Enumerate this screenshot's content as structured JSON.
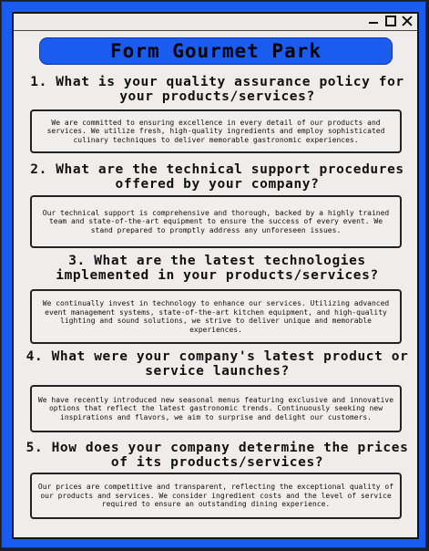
{
  "window": {
    "controls": {
      "minimize_icon": "minimize-icon",
      "maximize_icon": "maximize-icon",
      "close_icon": "close-icon"
    }
  },
  "header": {
    "title": "Form Gourmet Park",
    "accent_color": "#1a5cf0"
  },
  "items": [
    {
      "question": "1. What is your quality assurance policy for your products/services?",
      "answer": "We are committed to ensuring excellence in every detail of our products and services. We utilize fresh, high-quality ingredients and employ sophisticated culinary techniques to deliver memorable gastronomic experiences."
    },
    {
      "question": "2. What are the technical support procedures offered by your company?",
      "answer": "Our technical support is comprehensive and thorough, backed by a highly trained team and state-of-the-art equipment to ensure the success of every event. We stand prepared to promptly address any unforeseen issues."
    },
    {
      "question": "3. What are the latest technologies implemented in your products/services?",
      "answer": "We continually invest in technology to enhance our services. Utilizing advanced event management systems, state-of-the-art kitchen equipment, and high-quality lighting and sound solutions, we strive to deliver unique and memorable experiences."
    },
    {
      "question": "4. What were your company's latest product or service launches?",
      "answer": "We have recently introduced new seasonal menus featuring exclusive and innovative options that reflect the latest gastronomic trends. Continuously seeking new inspirations and flavors, we aim to surprise and delight our customers."
    },
    {
      "question": "5. How does your company determine the prices of its products/services?",
      "answer": "Our prices are competitive and transparent, reflecting the exceptional quality of our products and services. We consider ingredient costs and the level of service required to ensure an outstanding dining experience."
    }
  ]
}
